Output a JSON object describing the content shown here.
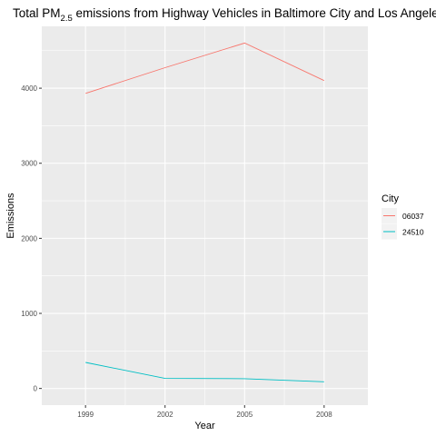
{
  "chart_data": {
    "type": "line",
    "title": {
      "prefix": "Total PM",
      "subscript": "2.5",
      "suffix": " emissions from Highway Vehicles in Baltimore City and Los Angeles County"
    },
    "xlabel": "Year",
    "ylabel": "Emissions",
    "x": [
      1999,
      2002,
      2005,
      2008
    ],
    "x_tick_labels": [
      "1999",
      "2002",
      "2005",
      "2008"
    ],
    "y_ticks": [
      0,
      1000,
      2000,
      3000,
      4000
    ],
    "y_tick_labels": [
      "0",
      "1000",
      "2000",
      "3000",
      "4000"
    ],
    "xlim": [
      1997.35,
      2009.65
    ],
    "ylim": [
      -222,
      4824
    ],
    "grid": true,
    "legend": {
      "title": "City",
      "position": "right"
    },
    "series": [
      {
        "name": "06037",
        "color": "#F8766D",
        "values": [
          3931,
          4274,
          4601,
          4101
        ]
      },
      {
        "name": "24510",
        "color": "#00BFC4",
        "values": [
          347,
          134,
          130,
          89
        ]
      }
    ]
  }
}
